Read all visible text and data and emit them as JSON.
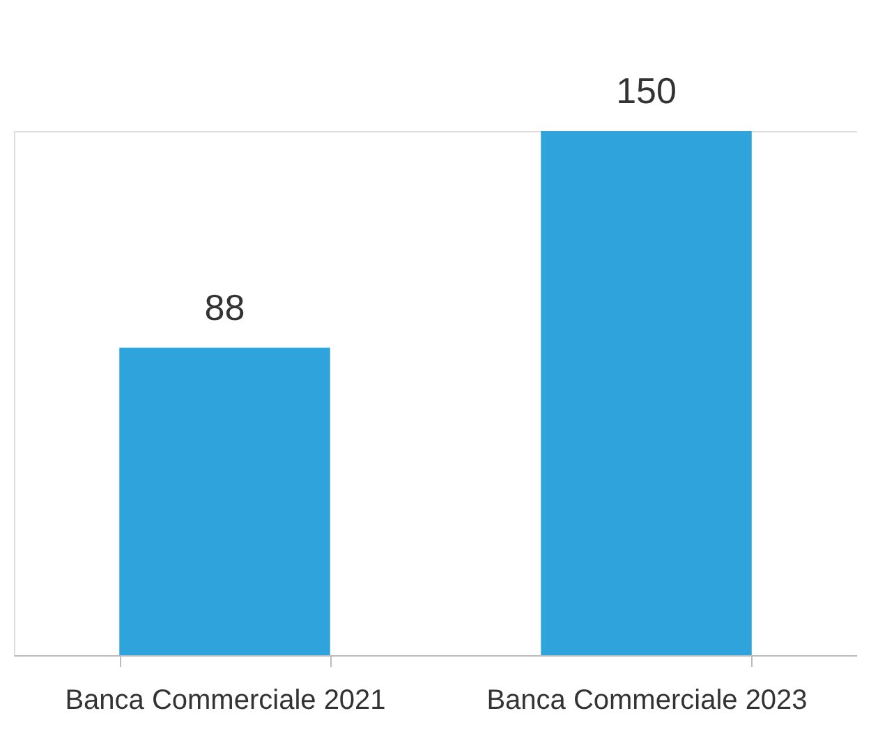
{
  "chart_data": {
    "type": "bar",
    "categories": [
      "Banca Commerciale 2021",
      "Banca Commerciale 2023"
    ],
    "values": [
      88,
      150
    ],
    "color": "#2fa4dc",
    "data_labels": true,
    "grid": false
  }
}
